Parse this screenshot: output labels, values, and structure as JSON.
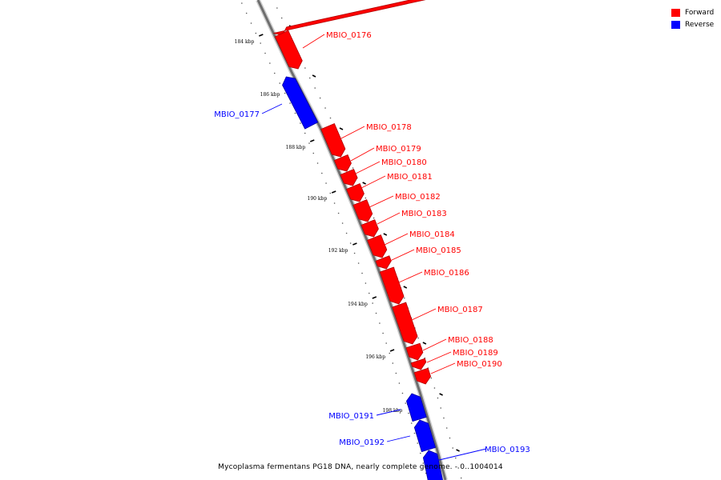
{
  "legend": {
    "forward_label": "Forward",
    "reverse_label": "Reverse",
    "forward_color": "#ff0000",
    "reverse_color": "#0000ff"
  },
  "caption": "Mycoplasma fermentans PG18 DNA, nearly complete genome. - 0..1004014",
  "tick_labels": [
    "184 kbp",
    "186 kbp",
    "188 kbp",
    "190 kbp",
    "192 kbp",
    "194 kbp",
    "196 kbp",
    "198 kbp"
  ],
  "genes": [
    {
      "label": "",
      "strand": "forward"
    },
    {
      "label": "MBIO_0176",
      "strand": "forward"
    },
    {
      "label": "MBIO_0177",
      "strand": "reverse"
    },
    {
      "label": "MBIO_0178",
      "strand": "forward"
    },
    {
      "label": "MBIO_0179",
      "strand": "forward"
    },
    {
      "label": "MBIO_0180",
      "strand": "forward"
    },
    {
      "label": "MBIO_0181",
      "strand": "forward"
    },
    {
      "label": "MBIO_0182",
      "strand": "forward"
    },
    {
      "label": "MBIO_0183",
      "strand": "forward"
    },
    {
      "label": "MBIO_0184",
      "strand": "forward"
    },
    {
      "label": "MBIO_0185",
      "strand": "forward"
    },
    {
      "label": "MBIO_0186",
      "strand": "forward"
    },
    {
      "label": "MBIO_0187",
      "strand": "forward"
    },
    {
      "label": "MBIO_0188",
      "strand": "forward"
    },
    {
      "label": "MBIO_0189",
      "strand": "forward"
    },
    {
      "label": "MBIO_0190",
      "strand": "forward"
    },
    {
      "label": "MBIO_0191",
      "strand": "reverse"
    },
    {
      "label": "MBIO_0192",
      "strand": "reverse"
    },
    {
      "label": "MBIO_0193",
      "strand": "reverse"
    }
  ]
}
